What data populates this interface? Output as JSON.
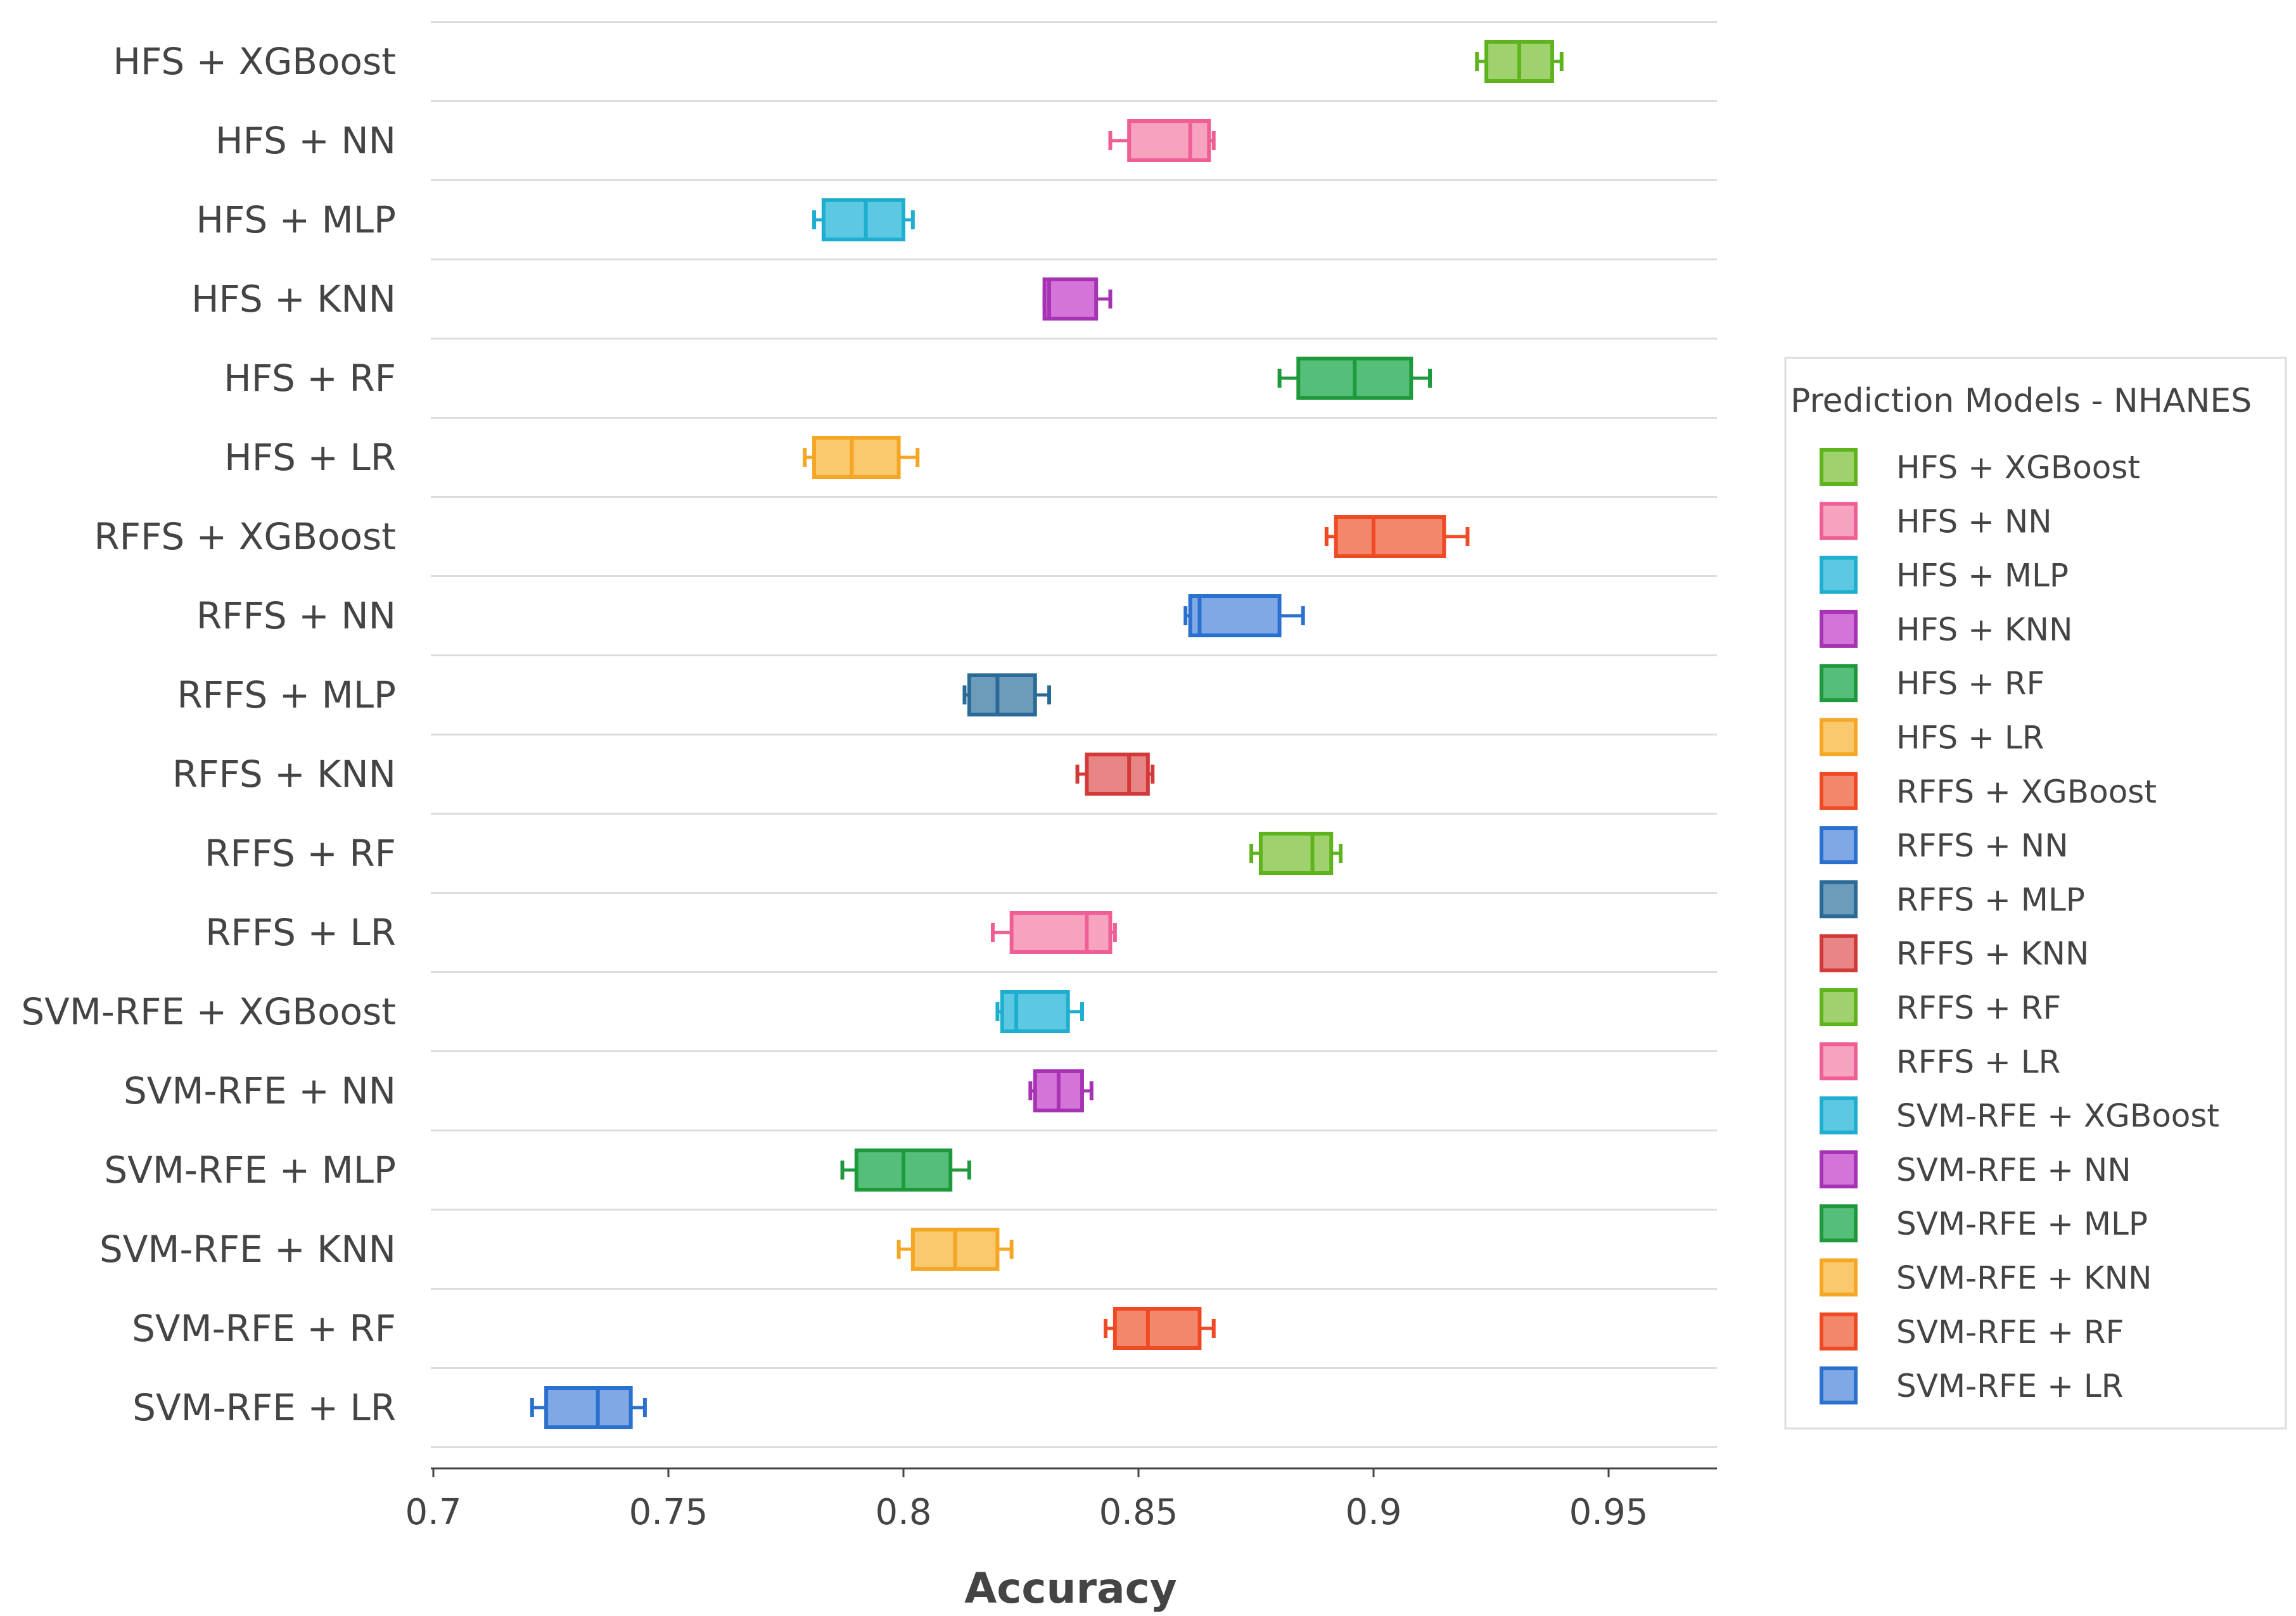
{
  "chart_data": {
    "type": "box",
    "orientation": "horizontal",
    "xlabel": "Accuracy",
    "xlim": [
      0.7,
      0.97
    ],
    "xticks": [
      0.7,
      0.75,
      0.8,
      0.85,
      0.9,
      0.95
    ],
    "xtick_labels": [
      "0.7",
      "0.75",
      "0.8",
      "0.85",
      "0.9",
      "0.95"
    ],
    "legend": {
      "title": "Prediction Models - NHANES",
      "position": "right"
    },
    "series": [
      {
        "name": "HFS + XGBoost",
        "color": "#5fb31d",
        "fill": "#9fd16e",
        "min": 0.922,
        "q1": 0.924,
        "median": 0.931,
        "q3": 0.938,
        "max": 0.94
      },
      {
        "name": "HFS + NN",
        "color": "#ef5f95",
        "fill": "#f7a3c0",
        "min": 0.844,
        "q1": 0.848,
        "median": 0.861,
        "q3": 0.865,
        "max": 0.866
      },
      {
        "name": "HFS + MLP",
        "color": "#1eafd0",
        "fill": "#5cc8e2",
        "min": 0.781,
        "q1": 0.783,
        "median": 0.792,
        "q3": 0.8,
        "max": 0.802
      },
      {
        "name": "HFS + KNN",
        "color": "#a633b4",
        "fill": "#d574d8",
        "min": 0.83,
        "q1": 0.83,
        "median": 0.831,
        "q3": 0.841,
        "max": 0.844
      },
      {
        "name": "HFS + RF",
        "color": "#1e9a3c",
        "fill": "#55bf7a",
        "min": 0.88,
        "q1": 0.884,
        "median": 0.896,
        "q3": 0.908,
        "max": 0.912
      },
      {
        "name": "HFS + LR",
        "color": "#f5a623",
        "fill": "#f9c86f",
        "min": 0.779,
        "q1": 0.781,
        "median": 0.789,
        "q3": 0.799,
        "max": 0.803
      },
      {
        "name": "RFFS + XGBoost",
        "color": "#f04a25",
        "fill": "#f3876c",
        "min": 0.89,
        "q1": 0.892,
        "median": 0.9,
        "q3": 0.915,
        "max": 0.92
      },
      {
        "name": "RFFS + NN",
        "color": "#2a70cf",
        "fill": "#7fa8e5",
        "min": 0.86,
        "q1": 0.861,
        "median": 0.863,
        "q3": 0.88,
        "max": 0.885
      },
      {
        "name": "RFFS + MLP",
        "color": "#2a6a96",
        "fill": "#6d9bbb",
        "min": 0.813,
        "q1": 0.814,
        "median": 0.82,
        "q3": 0.828,
        "max": 0.831
      },
      {
        "name": "RFFS + KNN",
        "color": "#d23a3a",
        "fill": "#e88585",
        "min": 0.837,
        "q1": 0.839,
        "median": 0.848,
        "q3": 0.852,
        "max": 0.853
      },
      {
        "name": "RFFS + RF",
        "color": "#5fb31d",
        "fill": "#9fd16e",
        "min": 0.874,
        "q1": 0.876,
        "median": 0.887,
        "q3": 0.891,
        "max": 0.893
      },
      {
        "name": "RFFS + LR",
        "color": "#ef5f95",
        "fill": "#f7a3c0",
        "min": 0.819,
        "q1": 0.823,
        "median": 0.839,
        "q3": 0.844,
        "max": 0.845
      },
      {
        "name": "SVM-RFE + XGBoost",
        "color": "#1eafd0",
        "fill": "#5cc8e2",
        "min": 0.82,
        "q1": 0.821,
        "median": 0.824,
        "q3": 0.835,
        "max": 0.838
      },
      {
        "name": "SVM-RFE + NN",
        "color": "#a633b4",
        "fill": "#d574d8",
        "min": 0.827,
        "q1": 0.828,
        "median": 0.833,
        "q3": 0.838,
        "max": 0.84
      },
      {
        "name": "SVM-RFE + MLP",
        "color": "#1e9a3c",
        "fill": "#55bf7a",
        "min": 0.787,
        "q1": 0.79,
        "median": 0.8,
        "q3": 0.81,
        "max": 0.814
      },
      {
        "name": "SVM-RFE + KNN",
        "color": "#f5a623",
        "fill": "#f9c86f",
        "min": 0.799,
        "q1": 0.802,
        "median": 0.811,
        "q3": 0.82,
        "max": 0.823
      },
      {
        "name": "SVM-RFE + RF",
        "color": "#f04a25",
        "fill": "#f3876c",
        "min": 0.843,
        "q1": 0.845,
        "median": 0.852,
        "q3": 0.863,
        "max": 0.866
      },
      {
        "name": "SVM-RFE + LR",
        "color": "#2a70cf",
        "fill": "#7fa8e5",
        "min": 0.721,
        "q1": 0.724,
        "median": 0.735,
        "q3": 0.742,
        "max": 0.745
      }
    ]
  }
}
